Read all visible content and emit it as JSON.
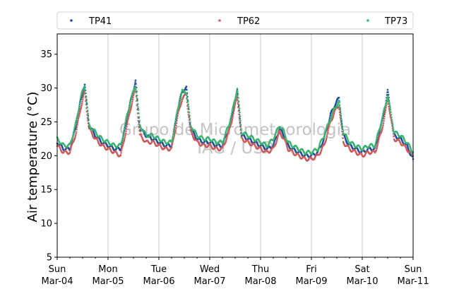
{
  "chart_data": {
    "type": "scatter",
    "ylabel": "Air temperature (°C)",
    "xlabel": "",
    "ylim": [
      5,
      38
    ],
    "xlim": [
      "2018-03-04",
      "2018-03-11"
    ],
    "yticks": [
      5,
      10,
      15,
      20,
      25,
      30,
      35
    ],
    "xticks": [
      {
        "day": "Sun",
        "date": "Mar-04",
        "x": "2018-03-04"
      },
      {
        "day": "Mon",
        "date": "Mar-05",
        "x": "2018-03-05"
      },
      {
        "day": "Tue",
        "date": "Mar-06",
        "x": "2018-03-06"
      },
      {
        "day": "Wed",
        "date": "Mar-07",
        "x": "2018-03-07"
      },
      {
        "day": "Thu",
        "date": "Mar-08",
        "x": "2018-03-08"
      },
      {
        "day": "Fri",
        "date": "Mar-09",
        "x": "2018-03-09"
      },
      {
        "day": "Sat",
        "date": "Mar-10",
        "x": "2018-03-10"
      },
      {
        "day": "Sun",
        "date": "Mar-11",
        "x": "2018-03-11"
      }
    ],
    "grid": "vertical",
    "legend": "top",
    "watermark": [
      "Grupo de Micrometeorologia",
      "IAG / USP"
    ],
    "series": [
      {
        "name": "TP41",
        "color": "#1f4e99",
        "points": [
          [
            "2018-03-04 00:00",
            22.0
          ],
          [
            "2018-03-04 03:00",
            21.0
          ],
          [
            "2018-03-04 06:00",
            21.0
          ],
          [
            "2018-03-04 09:00",
            24.5
          ],
          [
            "2018-03-04 11:00",
            28.0
          ],
          [
            "2018-03-04 13:00",
            30.5
          ],
          [
            "2018-03-04 15:00",
            24.5
          ],
          [
            "2018-03-04 18:00",
            23.0
          ],
          [
            "2018-03-04 21:00",
            22.0
          ],
          [
            "2018-03-05 00:00",
            21.5
          ],
          [
            "2018-03-05 03:00",
            21.0
          ],
          [
            "2018-03-05 06:00",
            21.0
          ],
          [
            "2018-03-05 09:00",
            25.5
          ],
          [
            "2018-03-05 11:00",
            28.5
          ],
          [
            "2018-03-05 13:00",
            31.0
          ],
          [
            "2018-03-05 15:00",
            24.0
          ],
          [
            "2018-03-05 18:00",
            23.0
          ],
          [
            "2018-03-05 21:00",
            22.5
          ],
          [
            "2018-03-06 00:00",
            22.0
          ],
          [
            "2018-03-06 03:00",
            21.5
          ],
          [
            "2018-03-06 06:00",
            21.5
          ],
          [
            "2018-03-06 09:00",
            27.0
          ],
          [
            "2018-03-06 11:00",
            29.5
          ],
          [
            "2018-03-06 13:00",
            30.0
          ],
          [
            "2018-03-06 15:00",
            24.0
          ],
          [
            "2018-03-06 18:00",
            22.5
          ],
          [
            "2018-03-06 21:00",
            22.0
          ],
          [
            "2018-03-07 00:00",
            22.0
          ],
          [
            "2018-03-07 03:00",
            21.5
          ],
          [
            "2018-03-07 06:00",
            21.5
          ],
          [
            "2018-03-07 09:00",
            24.0
          ],
          [
            "2018-03-07 11:00",
            26.5
          ],
          [
            "2018-03-07 13:00",
            29.5
          ],
          [
            "2018-03-07 15:00",
            23.0
          ],
          [
            "2018-03-07 18:00",
            22.5
          ],
          [
            "2018-03-07 21:00",
            22.0
          ],
          [
            "2018-03-08 00:00",
            21.5
          ],
          [
            "2018-03-08 03:00",
            21.0
          ],
          [
            "2018-03-08 06:00",
            21.5
          ],
          [
            "2018-03-08 09:00",
            24.0
          ],
          [
            "2018-03-08 11:00",
            23.0
          ],
          [
            "2018-03-08 13:00",
            21.5
          ],
          [
            "2018-03-08 15:00",
            21.0
          ],
          [
            "2018-03-08 18:00",
            20.5
          ],
          [
            "2018-03-08 21:00",
            20.0
          ],
          [
            "2018-03-09 00:00",
            20.0
          ],
          [
            "2018-03-09 03:00",
            20.5
          ],
          [
            "2018-03-09 06:00",
            22.5
          ],
          [
            "2018-03-09 09:00",
            26.0
          ],
          [
            "2018-03-09 11:00",
            27.5
          ],
          [
            "2018-03-09 13:00",
            28.5
          ],
          [
            "2018-03-09 15:00",
            23.0
          ],
          [
            "2018-03-09 18:00",
            21.5
          ],
          [
            "2018-03-09 21:00",
            21.0
          ],
          [
            "2018-03-10 00:00",
            20.5
          ],
          [
            "2018-03-10 03:00",
            21.0
          ],
          [
            "2018-03-10 06:00",
            21.0
          ],
          [
            "2018-03-10 09:00",
            24.5
          ],
          [
            "2018-03-10 11:00",
            27.5
          ],
          [
            "2018-03-10 12:00",
            29.5
          ],
          [
            "2018-03-10 15:00",
            23.0
          ],
          [
            "2018-03-10 18:00",
            22.5
          ],
          [
            "2018-03-10 21:00",
            21.5
          ],
          [
            "2018-03-11 00:00",
            19.5
          ]
        ]
      },
      {
        "name": "TP62",
        "color": "#cd5c5c",
        "points": [
          [
            "2018-03-04 00:00",
            21.5
          ],
          [
            "2018-03-04 03:00",
            20.5
          ],
          [
            "2018-03-04 06:00",
            20.5
          ],
          [
            "2018-03-04 09:00",
            23.5
          ],
          [
            "2018-03-04 11:00",
            27.0
          ],
          [
            "2018-03-04 13:00",
            29.5
          ],
          [
            "2018-03-04 15:00",
            24.0
          ],
          [
            "2018-03-04 18:00",
            22.5
          ],
          [
            "2018-03-04 21:00",
            21.5
          ],
          [
            "2018-03-05 00:00",
            21.0
          ],
          [
            "2018-03-05 03:00",
            20.5
          ],
          [
            "2018-03-05 06:00",
            20.0
          ],
          [
            "2018-03-05 09:00",
            24.5
          ],
          [
            "2018-03-05 11:00",
            27.5
          ],
          [
            "2018-03-05 13:00",
            30.0
          ],
          [
            "2018-03-05 15:00",
            23.0
          ],
          [
            "2018-03-05 18:00",
            22.0
          ],
          [
            "2018-03-05 21:00",
            22.0
          ],
          [
            "2018-03-06 00:00",
            21.5
          ],
          [
            "2018-03-06 03:00",
            21.0
          ],
          [
            "2018-03-06 06:00",
            21.0
          ],
          [
            "2018-03-06 09:00",
            26.0
          ],
          [
            "2018-03-06 11:00",
            28.5
          ],
          [
            "2018-03-06 13:00",
            29.0
          ],
          [
            "2018-03-06 15:00",
            23.5
          ],
          [
            "2018-03-06 18:00",
            22.0
          ],
          [
            "2018-03-06 21:00",
            21.5
          ],
          [
            "2018-03-07 00:00",
            21.5
          ],
          [
            "2018-03-07 03:00",
            21.0
          ],
          [
            "2018-03-07 06:00",
            21.0
          ],
          [
            "2018-03-07 09:00",
            23.5
          ],
          [
            "2018-03-07 11:00",
            26.0
          ],
          [
            "2018-03-07 13:00",
            29.0
          ],
          [
            "2018-03-07 15:00",
            22.5
          ],
          [
            "2018-03-07 18:00",
            22.0
          ],
          [
            "2018-03-07 21:00",
            21.5
          ],
          [
            "2018-03-08 00:00",
            21.0
          ],
          [
            "2018-03-08 03:00",
            20.5
          ],
          [
            "2018-03-08 06:00",
            21.0
          ],
          [
            "2018-03-08 09:00",
            23.5
          ],
          [
            "2018-03-08 11:00",
            22.5
          ],
          [
            "2018-03-08 13:00",
            21.0
          ],
          [
            "2018-03-08 15:00",
            20.5
          ],
          [
            "2018-03-08 18:00",
            20.0
          ],
          [
            "2018-03-08 21:00",
            19.5
          ],
          [
            "2018-03-09 00:00",
            19.5
          ],
          [
            "2018-03-09 03:00",
            20.0
          ],
          [
            "2018-03-09 06:00",
            21.5
          ],
          [
            "2018-03-09 09:00",
            25.0
          ],
          [
            "2018-03-09 11:00",
            26.5
          ],
          [
            "2018-03-09 13:00",
            27.5
          ],
          [
            "2018-03-09 15:00",
            22.0
          ],
          [
            "2018-03-09 18:00",
            21.0
          ],
          [
            "2018-03-09 21:00",
            20.5
          ],
          [
            "2018-03-10 00:00",
            20.0
          ],
          [
            "2018-03-10 03:00",
            20.5
          ],
          [
            "2018-03-10 06:00",
            20.5
          ],
          [
            "2018-03-10 09:00",
            23.5
          ],
          [
            "2018-03-10 11:00",
            26.5
          ],
          [
            "2018-03-10 12:00",
            28.5
          ],
          [
            "2018-03-10 15:00",
            22.5
          ],
          [
            "2018-03-10 18:00",
            22.0
          ],
          [
            "2018-03-10 21:00",
            21.0
          ],
          [
            "2018-03-11 00:00",
            20.0
          ]
        ]
      },
      {
        "name": "TP73",
        "color": "#3cb371",
        "points": [
          [
            "2018-03-04 00:00",
            22.5
          ],
          [
            "2018-03-04 03:00",
            21.5
          ],
          [
            "2018-03-04 06:00",
            21.5
          ],
          [
            "2018-03-04 09:00",
            25.0
          ],
          [
            "2018-03-04 11:00",
            28.5
          ],
          [
            "2018-03-04 13:00",
            30.5
          ],
          [
            "2018-03-04 15:00",
            24.5
          ],
          [
            "2018-03-04 18:00",
            23.5
          ],
          [
            "2018-03-04 21:00",
            22.5
          ],
          [
            "2018-03-05 00:00",
            22.0
          ],
          [
            "2018-03-05 03:00",
            21.5
          ],
          [
            "2018-03-05 06:00",
            21.5
          ],
          [
            "2018-03-05 09:00",
            26.0
          ],
          [
            "2018-03-05 11:00",
            28.5
          ],
          [
            "2018-03-05 13:00",
            30.5
          ],
          [
            "2018-03-05 15:00",
            24.5
          ],
          [
            "2018-03-05 18:00",
            23.0
          ],
          [
            "2018-03-05 21:00",
            23.0
          ],
          [
            "2018-03-06 00:00",
            22.5
          ],
          [
            "2018-03-06 03:00",
            22.0
          ],
          [
            "2018-03-06 06:00",
            22.0
          ],
          [
            "2018-03-06 09:00",
            27.0
          ],
          [
            "2018-03-06 11:00",
            29.5
          ],
          [
            "2018-03-06 13:00",
            29.5
          ],
          [
            "2018-03-06 15:00",
            24.5
          ],
          [
            "2018-03-06 18:00",
            23.0
          ],
          [
            "2018-03-06 21:00",
            22.5
          ],
          [
            "2018-03-07 00:00",
            22.5
          ],
          [
            "2018-03-07 03:00",
            22.0
          ],
          [
            "2018-03-07 06:00",
            22.0
          ],
          [
            "2018-03-07 09:00",
            24.5
          ],
          [
            "2018-03-07 11:00",
            27.0
          ],
          [
            "2018-03-07 13:00",
            30.0
          ],
          [
            "2018-03-07 15:00",
            23.5
          ],
          [
            "2018-03-07 18:00",
            23.0
          ],
          [
            "2018-03-07 21:00",
            22.5
          ],
          [
            "2018-03-08 00:00",
            22.0
          ],
          [
            "2018-03-08 03:00",
            21.5
          ],
          [
            "2018-03-08 06:00",
            22.5
          ],
          [
            "2018-03-08 09:00",
            24.5
          ],
          [
            "2018-03-08 11:00",
            23.5
          ],
          [
            "2018-03-08 13:00",
            22.0
          ],
          [
            "2018-03-08 15:00",
            21.5
          ],
          [
            "2018-03-08 18:00",
            21.0
          ],
          [
            "2018-03-08 21:00",
            20.5
          ],
          [
            "2018-03-09 00:00",
            20.5
          ],
          [
            "2018-03-09 03:00",
            21.0
          ],
          [
            "2018-03-09 06:00",
            23.0
          ],
          [
            "2018-03-09 09:00",
            25.5
          ],
          [
            "2018-03-09 11:00",
            27.0
          ],
          [
            "2018-03-09 13:00",
            28.0
          ],
          [
            "2018-03-09 15:00",
            23.5
          ],
          [
            "2018-03-09 18:00",
            22.0
          ],
          [
            "2018-03-09 21:00",
            21.5
          ],
          [
            "2018-03-10 00:00",
            21.0
          ],
          [
            "2018-03-10 03:00",
            21.5
          ],
          [
            "2018-03-10 06:00",
            21.5
          ],
          [
            "2018-03-10 09:00",
            25.0
          ],
          [
            "2018-03-10 11:00",
            27.5
          ],
          [
            "2018-03-10 12:00",
            29.0
          ],
          [
            "2018-03-10 15:00",
            23.5
          ],
          [
            "2018-03-10 18:00",
            23.0
          ],
          [
            "2018-03-10 21:00",
            22.0
          ],
          [
            "2018-03-11 00:00",
            20.5
          ]
        ]
      }
    ]
  }
}
